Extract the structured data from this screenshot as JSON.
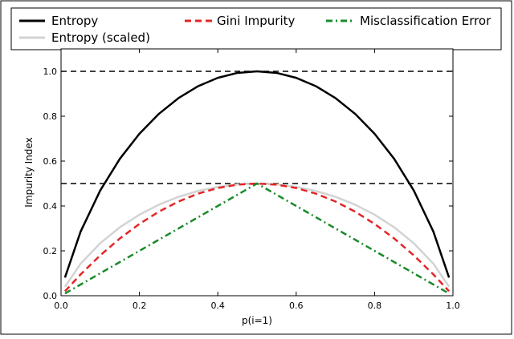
{
  "chart_data": {
    "type": "line",
    "xlabel": "p(i=1)",
    "ylabel": "Impurity Index",
    "xlim": [
      0.0,
      1.0
    ],
    "ylim": [
      0.0,
      1.1
    ],
    "x_ticks": [
      "0.0",
      "0.2",
      "0.4",
      "0.6",
      "0.8",
      "1.0"
    ],
    "y_ticks": [
      "0.0",
      "0.2",
      "0.4",
      "0.6",
      "0.8",
      "1.0"
    ],
    "grid": false,
    "legend_position": "top",
    "x": [
      0.01,
      0.05,
      0.1,
      0.15,
      0.2,
      0.25,
      0.3,
      0.35,
      0.4,
      0.45,
      0.5,
      0.55,
      0.6,
      0.65,
      0.7,
      0.75,
      0.8,
      0.85,
      0.9,
      0.95,
      0.99
    ],
    "series": [
      {
        "name": "Entropy",
        "color": "#000000",
        "style": "solid",
        "values": [
          0.081,
          0.286,
          0.469,
          0.61,
          0.722,
          0.811,
          0.881,
          0.934,
          0.971,
          0.993,
          1.0,
          0.993,
          0.971,
          0.934,
          0.881,
          0.811,
          0.722,
          0.61,
          0.469,
          0.286,
          0.081
        ]
      },
      {
        "name": "Entropy (scaled)",
        "color": "#d3d3d3",
        "style": "solid",
        "values": [
          0.04,
          0.143,
          0.234,
          0.305,
          0.361,
          0.406,
          0.441,
          0.467,
          0.485,
          0.496,
          0.5,
          0.496,
          0.485,
          0.467,
          0.441,
          0.406,
          0.361,
          0.305,
          0.234,
          0.143,
          0.04
        ]
      },
      {
        "name": "Gini Impurity",
        "color": "#e32626",
        "style": "dashed",
        "values": [
          0.02,
          0.095,
          0.18,
          0.255,
          0.32,
          0.375,
          0.42,
          0.455,
          0.48,
          0.495,
          0.5,
          0.495,
          0.48,
          0.455,
          0.42,
          0.375,
          0.32,
          0.255,
          0.18,
          0.095,
          0.02
        ]
      },
      {
        "name": "Misclassification Error",
        "color": "#1a8a2a",
        "style": "dashdot",
        "values": [
          0.01,
          0.05,
          0.1,
          0.15,
          0.2,
          0.25,
          0.3,
          0.35,
          0.4,
          0.45,
          0.5,
          0.45,
          0.4,
          0.35,
          0.3,
          0.25,
          0.2,
          0.15,
          0.1,
          0.05,
          0.01
        ]
      }
    ],
    "reference_lines": [
      {
        "y": 1.0,
        "color": "#000000",
        "style": "dashed"
      },
      {
        "y": 0.5,
        "color": "#000000",
        "style": "dashed"
      }
    ]
  }
}
